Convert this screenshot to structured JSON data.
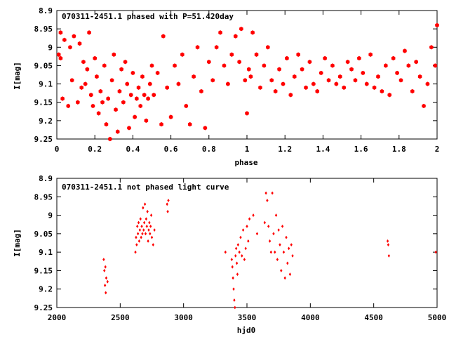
{
  "chart_data": [
    {
      "type": "scatter",
      "title": "070311-2451.1 phased with P=51.420day",
      "xlabel": "phase",
      "ylabel": "I[mag]",
      "xlim": [
        0,
        2
      ],
      "ylim": [
        9.25,
        8.9
      ],
      "y_inverted": true,
      "x_ticks": [
        "0",
        "0.2",
        "0.4",
        "0.6",
        "0.8",
        "1",
        "1.2",
        "1.4",
        "1.6",
        "1.8",
        "2"
      ],
      "y_ticks": [
        "8.9",
        "8.95",
        "9",
        "9.05",
        "9.1",
        "9.15",
        "9.2",
        "9.25"
      ],
      "marker": "filled-hexagon",
      "color": "#ff0000",
      "x": [
        0.01,
        0.02,
        0.02,
        0.03,
        0.04,
        0.06,
        0.07,
        0.08,
        0.09,
        0.11,
        0.12,
        0.13,
        0.14,
        0.15,
        0.16,
        0.17,
        0.18,
        0.19,
        0.2,
        0.21,
        0.22,
        0.23,
        0.24,
        0.25,
        0.26,
        0.27,
        0.28,
        0.29,
        0.3,
        0.31,
        0.32,
        0.33,
        0.34,
        0.35,
        0.36,
        0.37,
        0.38,
        0.39,
        0.4,
        0.41,
        0.42,
        0.43,
        0.44,
        0.45,
        0.46,
        0.47,
        0.48,
        0.49,
        0.5,
        0.51,
        0.53,
        0.55,
        0.56,
        0.58,
        0.6,
        0.62,
        0.64,
        0.66,
        0.68,
        0.7,
        0.72,
        0.74,
        0.76,
        0.78,
        0.8,
        0.82,
        0.84,
        0.86,
        0.88,
        0.9,
        0.92,
        0.94,
        0.96,
        0.97,
        0.99,
        1.0,
        1.01,
        1.02,
        1.03,
        1.05,
        1.07,
        1.09,
        1.11,
        1.13,
        1.15,
        1.17,
        1.19,
        1.21,
        1.23,
        1.25,
        1.27,
        1.29,
        1.31,
        1.33,
        1.35,
        1.37,
        1.39,
        1.41,
        1.43,
        1.45,
        1.47,
        1.49,
        1.51,
        1.53,
        1.55,
        1.57,
        1.59,
        1.61,
        1.63,
        1.65,
        1.67,
        1.69,
        1.71,
        1.73,
        1.75,
        1.77,
        1.79,
        1.81,
        1.83,
        1.85,
        1.87,
        1.89,
        1.91,
        1.93,
        1.95,
        1.97,
        1.99,
        2.0
      ],
      "y": [
        9.02,
        8.96,
        9.03,
        9.14,
        8.98,
        9.16,
        9.0,
        9.09,
        8.97,
        9.15,
        8.99,
        9.11,
        9.04,
        9.1,
        9.06,
        8.96,
        9.13,
        9.16,
        9.03,
        9.08,
        9.18,
        9.12,
        9.15,
        9.05,
        9.21,
        9.14,
        9.25,
        9.09,
        9.02,
        9.17,
        9.23,
        9.12,
        9.06,
        9.15,
        9.04,
        9.1,
        9.22,
        9.13,
        9.07,
        9.19,
        9.14,
        9.11,
        9.16,
        9.08,
        9.13,
        9.2,
        9.14,
        9.1,
        9.05,
        9.13,
        9.07,
        9.21,
        8.97,
        9.11,
        9.19,
        9.05,
        9.1,
        9.02,
        9.16,
        9.21,
        9.08,
        9.0,
        9.12,
        9.22,
        9.04,
        9.09,
        9.0,
        8.96,
        9.05,
        9.1,
        9.02,
        8.97,
        9.04,
        8.95,
        9.09,
        9.18,
        9.06,
        9.08,
        8.96,
        9.02,
        9.11,
        9.05,
        9.0,
        9.09,
        9.12,
        9.06,
        9.1,
        9.03,
        9.13,
        9.08,
        9.02,
        9.06,
        9.11,
        9.04,
        9.1,
        9.12,
        9.07,
        9.03,
        9.09,
        9.05,
        9.1,
        9.08,
        9.11,
        9.04,
        9.06,
        9.09,
        9.03,
        9.07,
        9.1,
        9.02,
        9.11,
        9.08,
        9.12,
        9.05,
        9.13,
        9.03,
        9.07,
        9.09,
        9.01,
        9.05,
        9.12,
        9.04,
        9.08,
        9.16,
        9.1,
        9.0,
        9.05,
        8.94
      ]
    },
    {
      "type": "scatter",
      "title": "070311-2451.1 not phased light curve",
      "xlabel": "hjd0",
      "ylabel": "I[mag]",
      "xlim": [
        2000,
        5000
      ],
      "ylim": [
        9.25,
        8.9
      ],
      "y_inverted": true,
      "x_ticks": [
        "2000",
        "2500",
        "3000",
        "3500",
        "4000",
        "4500",
        "5000"
      ],
      "y_ticks": [
        "8.9",
        "8.95",
        "9",
        "9.05",
        "9.1",
        "9.15",
        "9.2",
        "9.25"
      ],
      "marker": "small-diamond",
      "color": "#ff0000",
      "x": [
        2370,
        2375,
        2380,
        2383,
        2386,
        2390,
        2400,
        2620,
        2625,
        2630,
        2635,
        2640,
        2645,
        2650,
        2655,
        2660,
        2665,
        2670,
        2675,
        2680,
        2685,
        2690,
        2695,
        2700,
        2705,
        2710,
        2715,
        2720,
        2725,
        2730,
        2735,
        2740,
        2745,
        2750,
        2760,
        2770,
        2870,
        2875,
        2880,
        3330,
        3380,
        3385,
        3390,
        3395,
        3400,
        3405,
        3410,
        3415,
        3420,
        3425,
        3430,
        3440,
        3450,
        3460,
        3470,
        3480,
        3490,
        3500,
        3510,
        3520,
        3550,
        3580,
        3640,
        3650,
        3660,
        3670,
        3680,
        3690,
        3700,
        3710,
        3720,
        3730,
        3740,
        3750,
        3760,
        3770,
        3780,
        3790,
        3800,
        3810,
        3820,
        3830,
        3840,
        3850,
        3860,
        4610,
        4615,
        4620,
        4990
      ],
      "y": [
        9.12,
        9.15,
        9.19,
        9.14,
        9.21,
        9.17,
        9.18,
        9.1,
        9.06,
        9.08,
        9.03,
        9.05,
        9.02,
        9.07,
        9.04,
        9.01,
        9.06,
        9.03,
        9.05,
        8.98,
        9.04,
        9.02,
        8.97,
        9.05,
        9.01,
        9.03,
        8.99,
        9.07,
        9.04,
        9.02,
        9.05,
        9.03,
        9.0,
        9.06,
        9.08,
        9.04,
        8.97,
        8.99,
        8.96,
        9.1,
        9.12,
        9.14,
        9.17,
        9.2,
        9.23,
        9.25,
        9.11,
        9.09,
        9.13,
        9.16,
        9.08,
        9.1,
        9.06,
        9.11,
        9.04,
        9.12,
        9.09,
        9.03,
        9.07,
        9.01,
        9.0,
        9.05,
        9.02,
        8.94,
        8.96,
        9.03,
        9.07,
        9.1,
        8.94,
        9.05,
        9.1,
        9.0,
        9.12,
        9.04,
        9.08,
        9.15,
        9.03,
        9.1,
        9.17,
        9.06,
        9.13,
        9.09,
        9.16,
        9.08,
        9.11,
        9.07,
        9.08,
        9.11,
        9.1
      ]
    }
  ]
}
